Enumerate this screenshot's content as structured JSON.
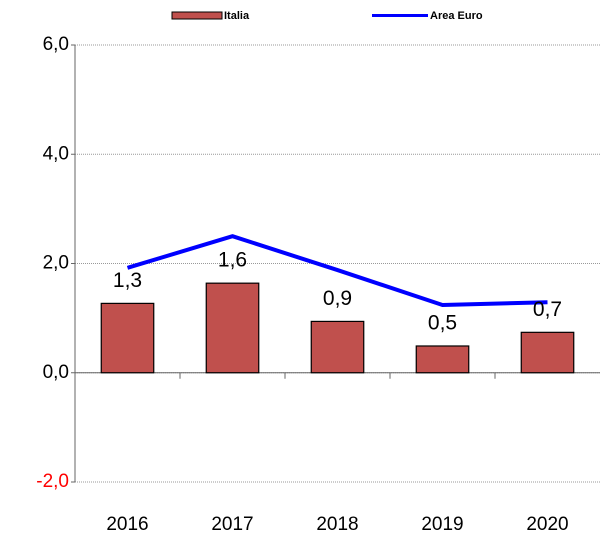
{
  "chart_data": {
    "type": "bar_line",
    "categories": [
      "2016",
      "2017",
      "2018",
      "2019",
      "2020"
    ],
    "series": [
      {
        "name": "Italia",
        "type": "bar",
        "color": "#c0504d",
        "values": [
          1.27,
          1.64,
          0.94,
          0.49,
          0.74
        ],
        "value_labels": [
          "1,3",
          "1,6",
          "0,9",
          "0,5",
          "0,7"
        ]
      },
      {
        "name": "Area Euro",
        "type": "line",
        "color": "#0000ff",
        "values": [
          1.92,
          2.5,
          1.88,
          1.24,
          1.29
        ]
      }
    ],
    "ylim": [
      -2,
      6
    ],
    "yticks": [
      {
        "value": -2,
        "label": "-2,0"
      },
      {
        "value": 0,
        "label": "0,0"
      },
      {
        "value": 2,
        "label": "2,0"
      },
      {
        "value": 4,
        "label": "4,0"
      },
      {
        "value": 6,
        "label": "6,0"
      }
    ],
    "negative_tick_color": "#ff0000",
    "grid": true,
    "legend": "top"
  }
}
